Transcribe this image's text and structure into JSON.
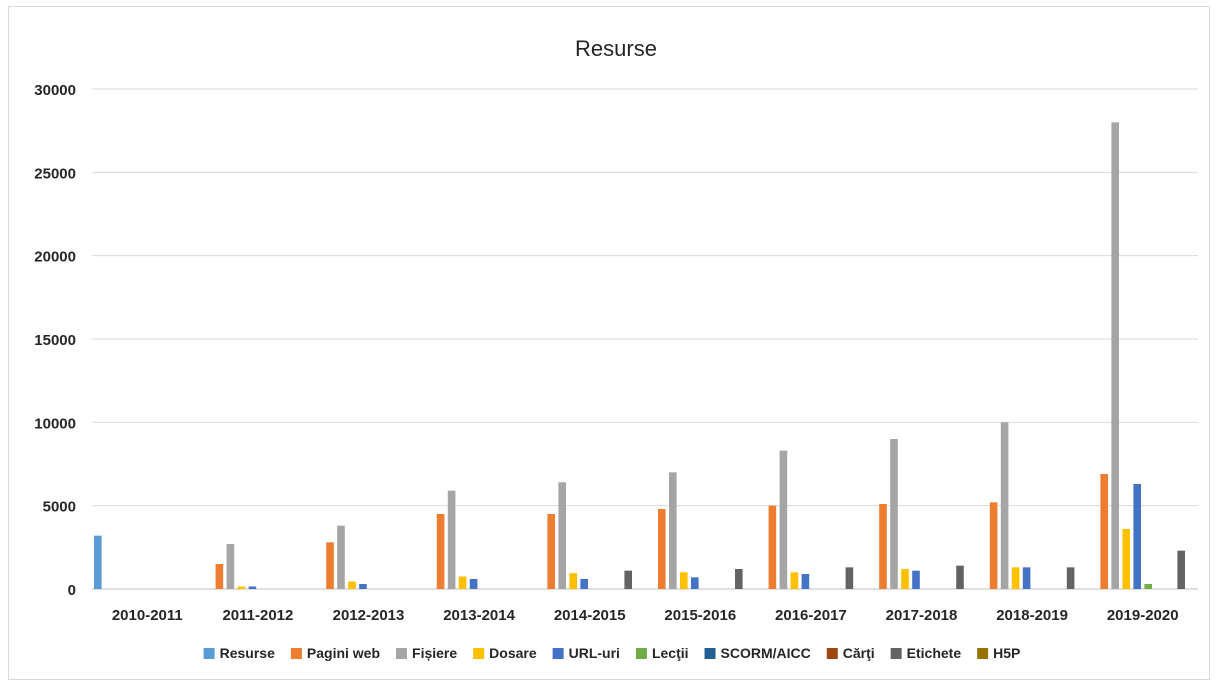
{
  "chart_data": {
    "type": "bar",
    "title": "Resurse",
    "xlabel": "",
    "ylabel": "",
    "ylim": [
      0,
      30000
    ],
    "yticks": [
      0,
      5000,
      10000,
      15000,
      20000,
      25000,
      30000
    ],
    "grid": true,
    "legend_position": "bottom",
    "categories": [
      "2010-2011",
      "2011-2012",
      "2012-2013",
      "2013-2014",
      "2014-2015",
      "2015-2016",
      "2016-2017",
      "2017-2018",
      "2018-2019",
      "2019-2020"
    ],
    "series": [
      {
        "name": "Resurse",
        "color": "#5b9bd5",
        "values": [
          3200,
          0,
          0,
          0,
          0,
          0,
          0,
          0,
          0,
          0
        ]
      },
      {
        "name": "Pagini web",
        "color": "#ed7d31",
        "values": [
          0,
          1500,
          2800,
          4500,
          4500,
          4800,
          5000,
          5100,
          5200,
          6900
        ]
      },
      {
        "name": "Fișiere",
        "color": "#a5a5a5",
        "values": [
          0,
          2700,
          3800,
          5900,
          6400,
          7000,
          8300,
          9000,
          10000,
          28000
        ]
      },
      {
        "name": "Dosare",
        "color": "#ffc000",
        "values": [
          0,
          150,
          450,
          750,
          950,
          1000,
          1000,
          1200,
          1300,
          3600
        ]
      },
      {
        "name": "URL-uri",
        "color": "#4472c4",
        "values": [
          0,
          150,
          300,
          600,
          600,
          700,
          900,
          1100,
          1300,
          6300
        ]
      },
      {
        "name": "Lecţii",
        "color": "#70ad47",
        "values": [
          0,
          0,
          0,
          0,
          0,
          0,
          0,
          0,
          0,
          300
        ]
      },
      {
        "name": "SCORM/AICC",
        "color": "#255e91",
        "values": [
          0,
          0,
          0,
          0,
          0,
          0,
          0,
          0,
          0,
          0
        ]
      },
      {
        "name": "Cărţi",
        "color": "#9e480e",
        "values": [
          0,
          0,
          0,
          0,
          0,
          0,
          0,
          0,
          0,
          0
        ]
      },
      {
        "name": "Etichete",
        "color": "#636363",
        "values": [
          0,
          0,
          0,
          0,
          1100,
          1200,
          1300,
          1400,
          1300,
          2300
        ]
      },
      {
        "name": "H5P",
        "color": "#997300",
        "values": [
          0,
          0,
          0,
          0,
          0,
          0,
          0,
          0,
          0,
          0
        ]
      }
    ]
  }
}
